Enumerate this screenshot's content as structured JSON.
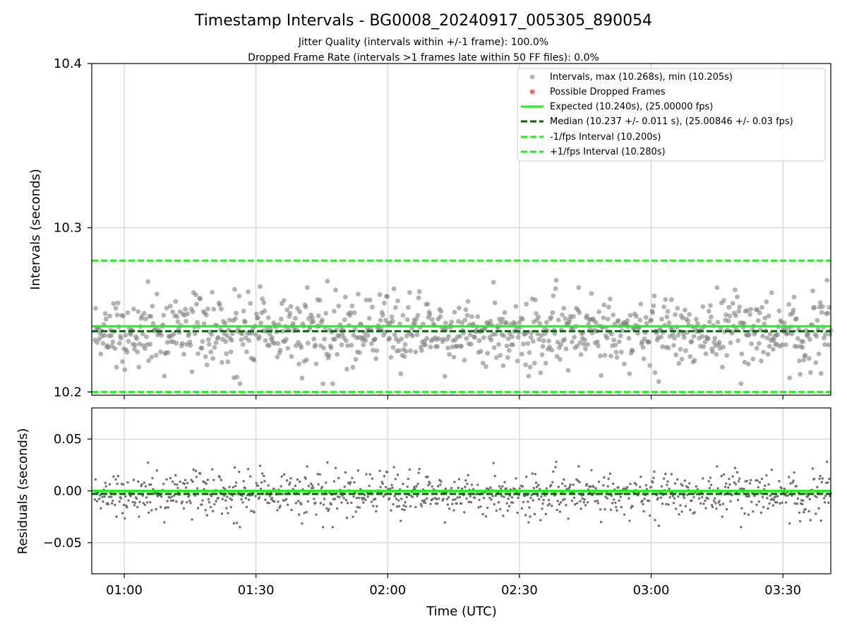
{
  "figure": {
    "title": "Timestamp Intervals - BG0008_20240917_005305_890054",
    "subtitle_line1": "Jitter Quality (intervals within +/-1 frame): 100.0%",
    "subtitle_line2": "Dropped Frame Rate (intervals >1 frames late within 50 FF files): 0.0%"
  },
  "colors": {
    "points": "#808080",
    "dropped": "#ee4444",
    "expected": "#22ee22",
    "median": "#006400",
    "bounds": "#22ee22",
    "grid": "#c8c8c8"
  },
  "chart_data": [
    {
      "type": "scatter",
      "ylabel": "Intervals (seconds)",
      "ylim": [
        10.198,
        10.4
      ],
      "yticks": [
        10.2,
        10.3,
        10.4
      ],
      "ytick_labels": [
        "10.2",
        "10.3",
        "10.4"
      ],
      "xlim_minutes": [
        52.6,
        220.9
      ],
      "xticks_minutes": [
        60,
        90,
        120,
        150,
        180,
        210
      ],
      "xtick_labels": [
        "01:00",
        "01:30",
        "02:00",
        "02:30",
        "03:00",
        "03:30"
      ],
      "grid": true,
      "legend_position": "top-right",
      "point_range_minutes": [
        53.3,
        220.9
      ],
      "point_count": 985,
      "interval_max": 10.268,
      "interval_min": 10.205,
      "expected_interval": 10.24,
      "median_interval": 10.237,
      "lower_bound": 10.2,
      "upper_bound": 10.28,
      "series": [
        {
          "name": "Intervals, max (10.268s), min (10.205s)",
          "kind": "points"
        },
        {
          "name": "Possible Dropped Frames",
          "kind": "dropped",
          "values": []
        },
        {
          "name": "Expected (10.240s), (25.00000 fps)",
          "kind": "expected",
          "y": 10.24
        },
        {
          "name": "Median (10.237 +/- 0.011 s), (25.00846 +/- 0.03 fps)",
          "kind": "median",
          "y": 10.237
        },
        {
          "name": "-1/fps Interval (10.200s)",
          "kind": "bound",
          "y": 10.2
        },
        {
          "name": "+1/fps Interval (10.280s)",
          "kind": "bound",
          "y": 10.28
        }
      ]
    },
    {
      "type": "scatter",
      "xlabel": "Time (UTC)",
      "ylabel": "Residuals (seconds)",
      "ylim": [
        -0.08,
        0.08
      ],
      "yticks": [
        -0.05,
        0.0,
        0.05
      ],
      "ytick_labels": [
        "−0.05",
        "0.00",
        "0.05"
      ],
      "xlim_minutes": [
        52.6,
        220.9
      ],
      "xticks_minutes": [
        60,
        90,
        120,
        150,
        180,
        210
      ],
      "xtick_labels": [
        "01:00",
        "01:30",
        "02:00",
        "02:30",
        "03:00",
        "03:30"
      ],
      "grid": true,
      "zero_line": 0.0,
      "median_residual": -0.003
    }
  ]
}
